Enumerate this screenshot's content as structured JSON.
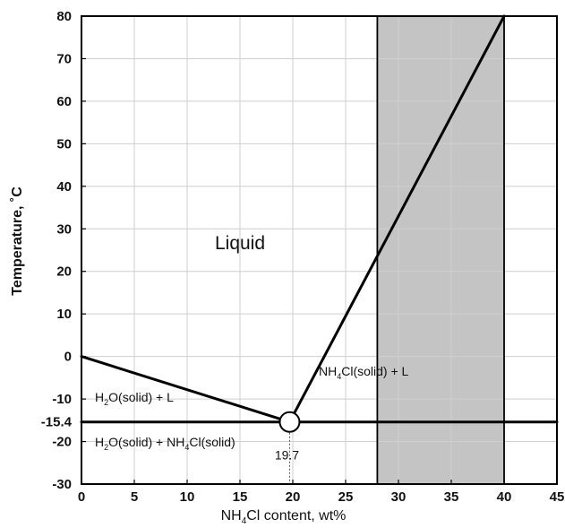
{
  "chart_data": {
    "type": "line",
    "title": "",
    "xlabel_parts": [
      "NH",
      "4",
      "Cl content, wt%"
    ],
    "ylabel": "Temperature, ˚C",
    "xlim": [
      0,
      45
    ],
    "ylim": [
      -30,
      80
    ],
    "x_ticks": [
      0,
      5,
      10,
      15,
      20,
      25,
      30,
      35,
      40,
      45
    ],
    "y_ticks": [
      -30,
      -20,
      -10,
      0,
      10,
      20,
      30,
      40,
      50,
      60,
      70,
      80
    ],
    "extra_y_tick": "-15.4",
    "grid": true,
    "series": [
      {
        "values": [
          [
            0,
            0
          ],
          [
            19.7,
            -15.4
          ]
        ]
      },
      {
        "values": [
          [
            19.7,
            -15.4
          ],
          [
            40,
            80
          ]
        ]
      },
      {
        "values": [
          [
            0,
            -15.4
          ],
          [
            45,
            -15.4
          ]
        ]
      }
    ],
    "shaded_region": {
      "x": [
        28,
        40
      ],
      "y": [
        -30,
        80
      ],
      "color": "#c4c4c4"
    },
    "eutectic_point": {
      "x": 19.7,
      "y": -15.4,
      "label": "19.7"
    },
    "region_labels": {
      "liquid": "Liquid",
      "ice_liquid": [
        "H",
        "2",
        "O(solid) + L"
      ],
      "ice_salt": [
        "H",
        "2",
        "O(solid) + NH",
        "4",
        "Cl(solid)"
      ],
      "salt_liquid": [
        "NH",
        "4",
        "Cl(solid) + L"
      ]
    },
    "colors": {
      "line": "#000000",
      "grid": "#cfcfcf",
      "shade": "#c4c4c4"
    }
  }
}
